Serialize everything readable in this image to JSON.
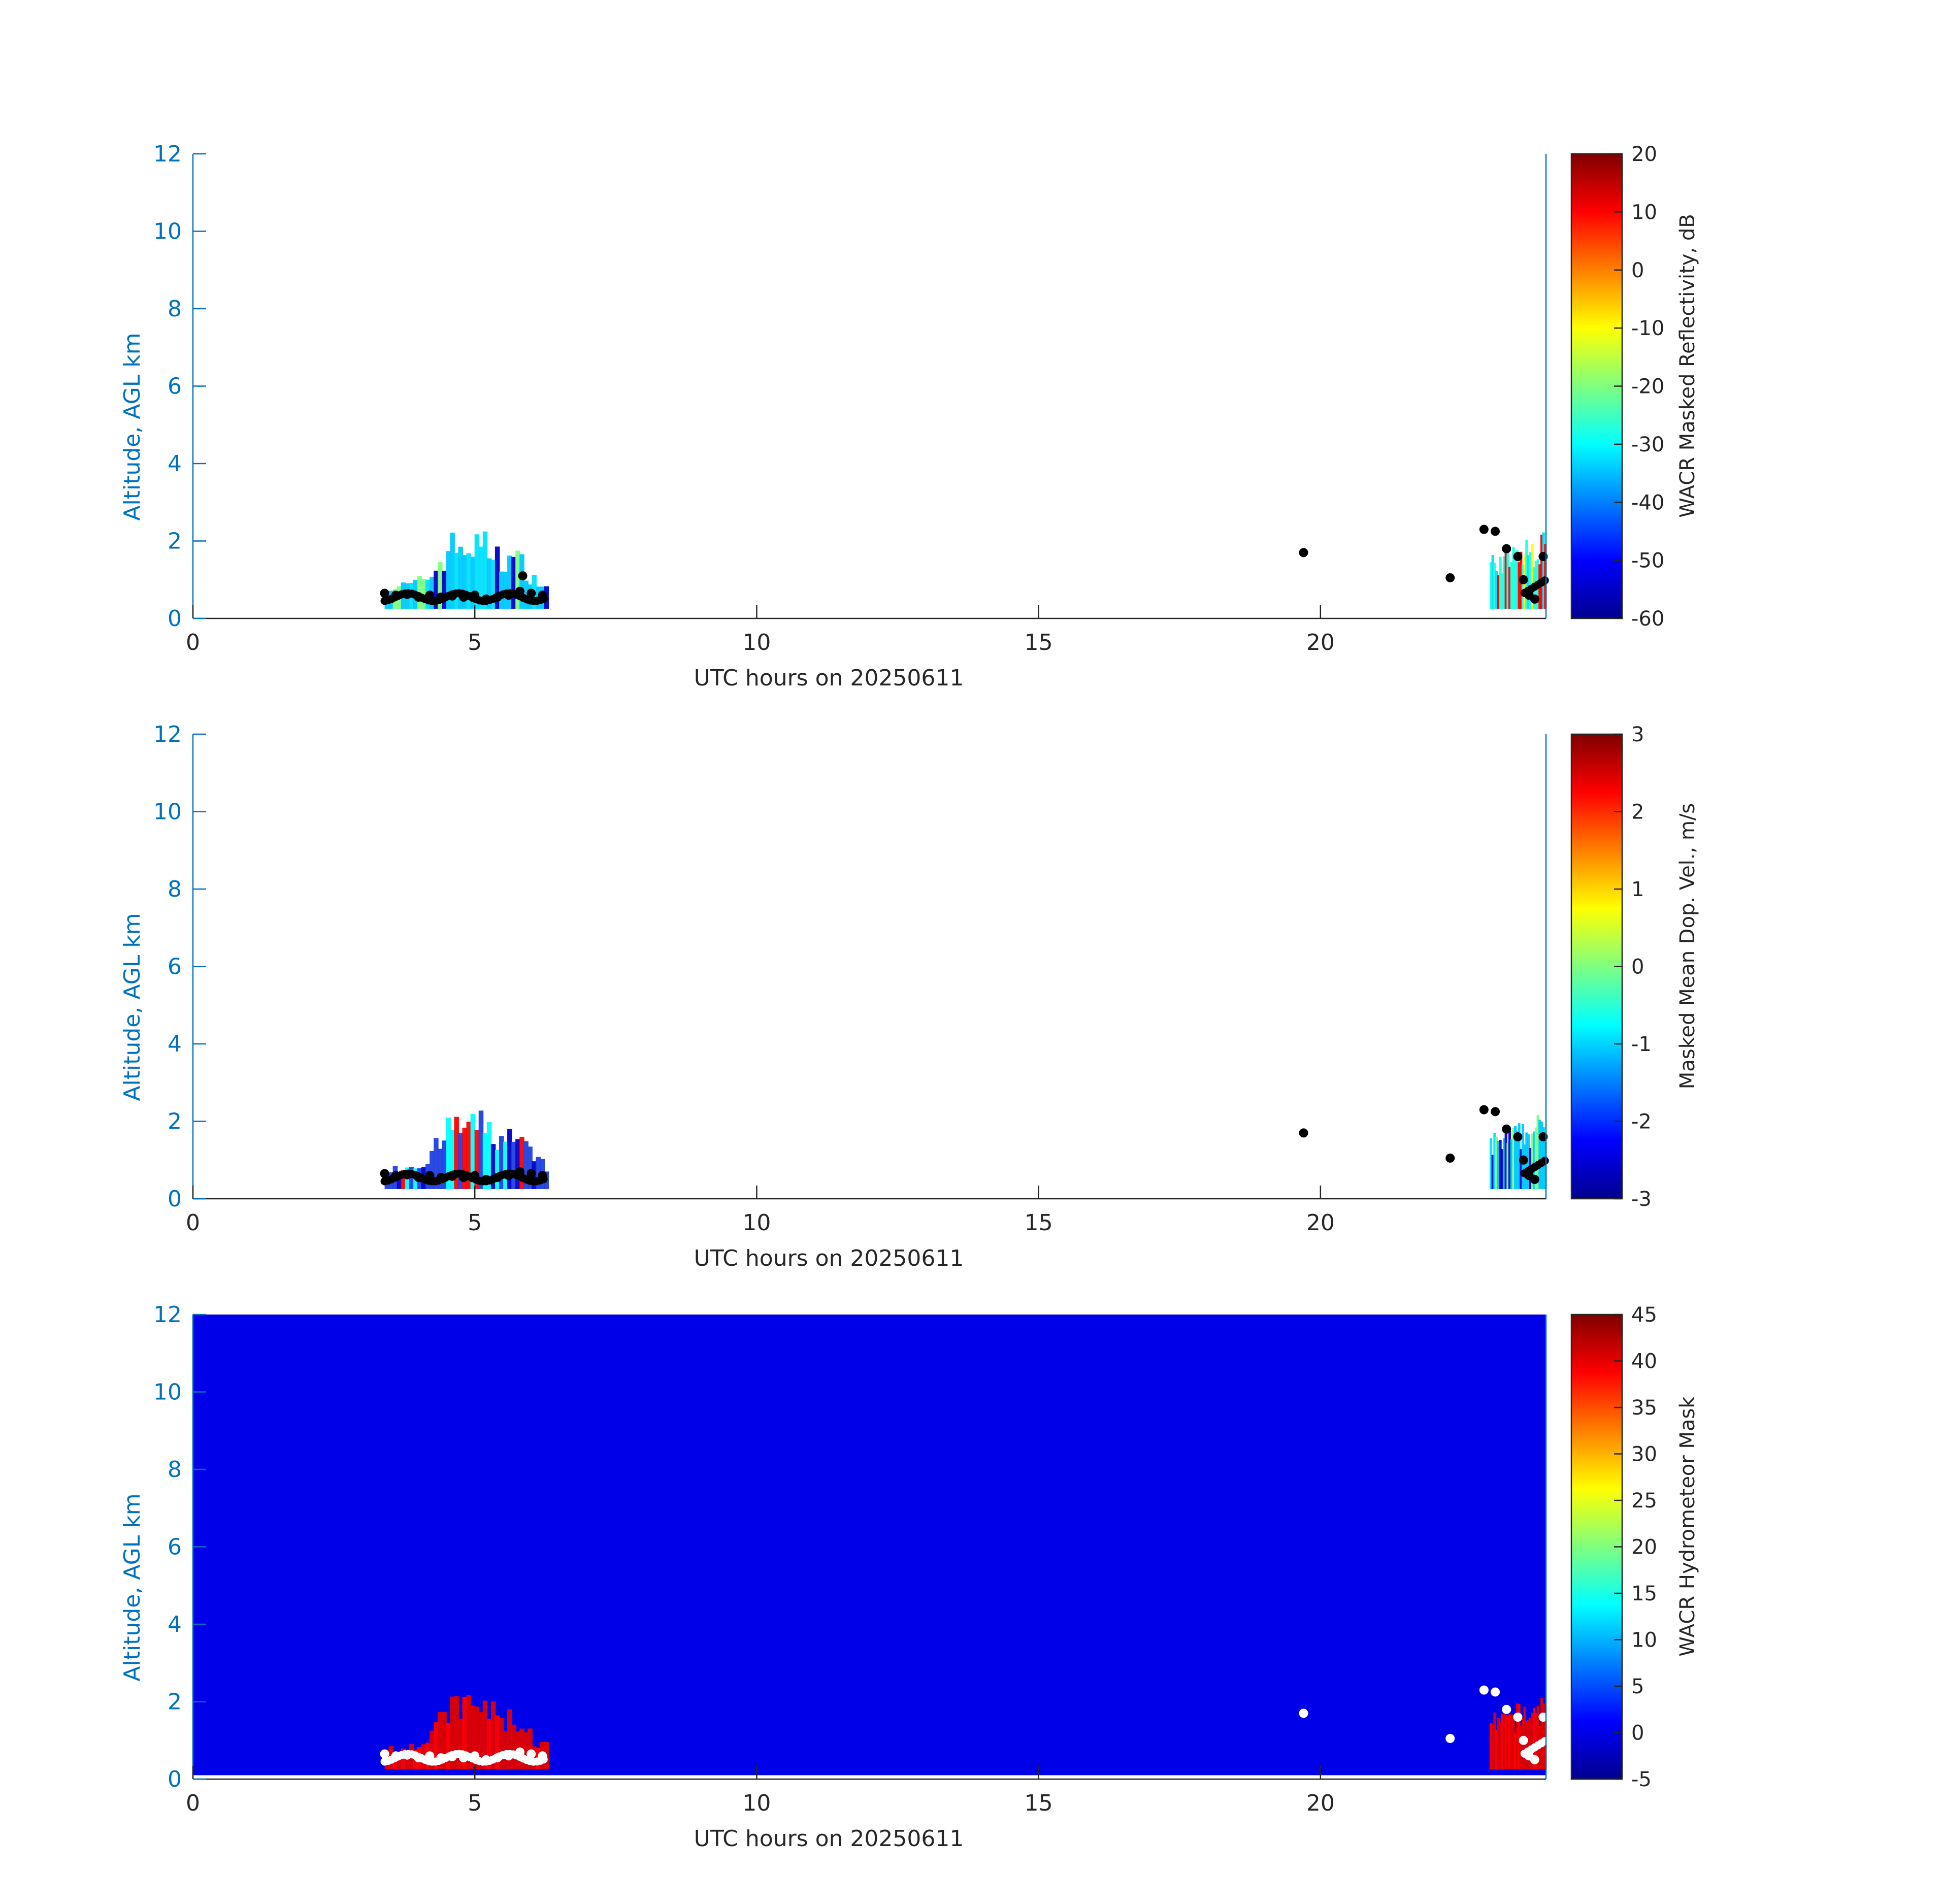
{
  "chart_data": [
    {
      "type": "heatmap",
      "xlabel": "UTC hours on 20250611",
      "ylabel": "Altitude, AGL km",
      "xlim": [
        0,
        24
      ],
      "ylim": [
        0,
        12
      ],
      "xticks": [
        0,
        5,
        10,
        15,
        20
      ],
      "yticks": [
        0,
        2,
        4,
        6,
        8,
        10,
        12
      ],
      "background": "#ffffff",
      "colorbar": {
        "label": "WACR Masked Reflectivity, dB",
        "range": [
          -60,
          20
        ],
        "ticks": [
          -60,
          -50,
          -40,
          -30,
          -20,
          -10,
          0,
          10,
          20
        ]
      },
      "cloud_patches": [
        {
          "x_range": [
            3.4,
            6.3
          ],
          "top_km": 2.3,
          "base_km": 0.25,
          "color_range": [
            "#0000c8",
            "#00e0ff",
            "#7fff7f"
          ],
          "dominant_color": "#00c8ff"
        },
        {
          "x_range": [
            23.0,
            24.0
          ],
          "top_km": 2.3,
          "base_km": 0.25,
          "color_range": [
            "#00e0ff",
            "#ffff00",
            "#ff0000"
          ],
          "dominant_color": "#20ffe0"
        }
      ],
      "cloud_base_points_color": "#000000",
      "cloud_base_points": [
        [
          3.4,
          0.65
        ],
        [
          3.6,
          0.6
        ],
        [
          3.8,
          0.62
        ],
        [
          4.0,
          0.55
        ],
        [
          4.2,
          0.6
        ],
        [
          4.4,
          0.55
        ],
        [
          4.6,
          0.58
        ],
        [
          4.8,
          0.55
        ],
        [
          5.0,
          0.6
        ],
        [
          5.2,
          0.5
        ],
        [
          5.4,
          0.55
        ],
        [
          5.6,
          0.6
        ],
        [
          5.8,
          0.7
        ],
        [
          5.85,
          1.1
        ],
        [
          6.0,
          0.65
        ],
        [
          6.2,
          0.6
        ],
        [
          19.7,
          1.7
        ],
        [
          22.3,
          1.05
        ],
        [
          22.9,
          2.3
        ],
        [
          23.1,
          2.25
        ],
        [
          23.3,
          1.8
        ],
        [
          23.5,
          1.6
        ],
        [
          23.6,
          1.0
        ],
        [
          23.7,
          0.6
        ],
        [
          23.8,
          0.5
        ],
        [
          23.95,
          1.6
        ]
      ]
    },
    {
      "type": "heatmap",
      "xlabel": "UTC hours on 20250611",
      "ylabel": "Altitude, AGL km",
      "xlim": [
        0,
        24
      ],
      "ylim": [
        0,
        12
      ],
      "xticks": [
        0,
        5,
        10,
        15,
        20
      ],
      "yticks": [
        0,
        2,
        4,
        6,
        8,
        10,
        12
      ],
      "background": "#ffffff",
      "colorbar": {
        "label": "Masked Mean Dop. Vel., m/s",
        "range": [
          -3,
          3
        ],
        "ticks": [
          -3,
          -2,
          -1,
          0,
          1,
          2,
          3
        ]
      },
      "cloud_patches": [
        {
          "x_range": [
            3.4,
            6.3
          ],
          "top_km": 2.3,
          "base_km": 0.25,
          "color_range": [
            "#0000c8",
            "#ff0000",
            "#00ffff"
          ],
          "dominant_color": "#2040e0"
        },
        {
          "x_range": [
            23.0,
            24.0
          ],
          "top_km": 2.3,
          "base_km": 0.25,
          "color_range": [
            "#0000c8",
            "#00e0ff",
            "#7fff7f"
          ],
          "dominant_color": "#00c8ff"
        }
      ],
      "cloud_base_points_color": "#000000",
      "cloud_base_points": [
        [
          3.4,
          0.65
        ],
        [
          3.6,
          0.6
        ],
        [
          3.8,
          0.62
        ],
        [
          4.0,
          0.55
        ],
        [
          4.2,
          0.6
        ],
        [
          4.4,
          0.55
        ],
        [
          4.6,
          0.58
        ],
        [
          4.8,
          0.55
        ],
        [
          5.0,
          0.6
        ],
        [
          5.2,
          0.5
        ],
        [
          5.4,
          0.55
        ],
        [
          5.6,
          0.6
        ],
        [
          5.8,
          0.7
        ],
        [
          6.0,
          0.65
        ],
        [
          6.2,
          0.6
        ],
        [
          19.7,
          1.7
        ],
        [
          22.3,
          1.05
        ],
        [
          22.9,
          2.3
        ],
        [
          23.1,
          2.25
        ],
        [
          23.3,
          1.8
        ],
        [
          23.5,
          1.6
        ],
        [
          23.6,
          1.0
        ],
        [
          23.7,
          0.6
        ],
        [
          23.8,
          0.5
        ],
        [
          23.95,
          1.6
        ]
      ]
    },
    {
      "type": "heatmap",
      "xlabel": "UTC hours on 20250611",
      "ylabel": "Altitude, AGL km",
      "xlim": [
        0,
        24
      ],
      "ylim": [
        0,
        12
      ],
      "xticks": [
        0,
        5,
        10,
        15,
        20
      ],
      "yticks": [
        0,
        2,
        4,
        6,
        8,
        10,
        12
      ],
      "background": "#0000e8",
      "background_value": 0,
      "colorbar": {
        "label": "WACR Hydrometeor Mask",
        "range": [
          -5,
          45
        ],
        "ticks": [
          -5,
          0,
          5,
          10,
          15,
          20,
          25,
          30,
          35,
          40,
          45
        ]
      },
      "cloud_patches": [
        {
          "x_range": [
            3.4,
            6.3
          ],
          "top_km": 2.3,
          "base_km": 0.25,
          "color_range": [
            "#dd0000",
            "#ff0000"
          ],
          "dominant_color": "#e00000"
        },
        {
          "x_range": [
            23.0,
            24.0
          ],
          "top_km": 2.3,
          "base_km": 0.25,
          "color_range": [
            "#dd0000",
            "#ff0000"
          ],
          "dominant_color": "#e00000"
        }
      ],
      "cloud_base_points_color": "#ffffff",
      "cloud_base_points": [
        [
          3.4,
          0.65
        ],
        [
          3.6,
          0.6
        ],
        [
          3.8,
          0.62
        ],
        [
          4.0,
          0.55
        ],
        [
          4.2,
          0.6
        ],
        [
          4.4,
          0.55
        ],
        [
          4.6,
          0.58
        ],
        [
          4.8,
          0.55
        ],
        [
          5.0,
          0.6
        ],
        [
          5.2,
          0.5
        ],
        [
          5.4,
          0.55
        ],
        [
          5.6,
          0.6
        ],
        [
          5.8,
          0.7
        ],
        [
          6.0,
          0.65
        ],
        [
          6.2,
          0.6
        ],
        [
          19.7,
          1.7
        ],
        [
          22.3,
          1.05
        ],
        [
          22.9,
          2.3
        ],
        [
          23.1,
          2.25
        ],
        [
          23.3,
          1.8
        ],
        [
          23.5,
          1.6
        ],
        [
          23.6,
          1.0
        ],
        [
          23.7,
          0.6
        ],
        [
          23.8,
          0.5
        ],
        [
          23.95,
          1.6
        ]
      ]
    }
  ]
}
